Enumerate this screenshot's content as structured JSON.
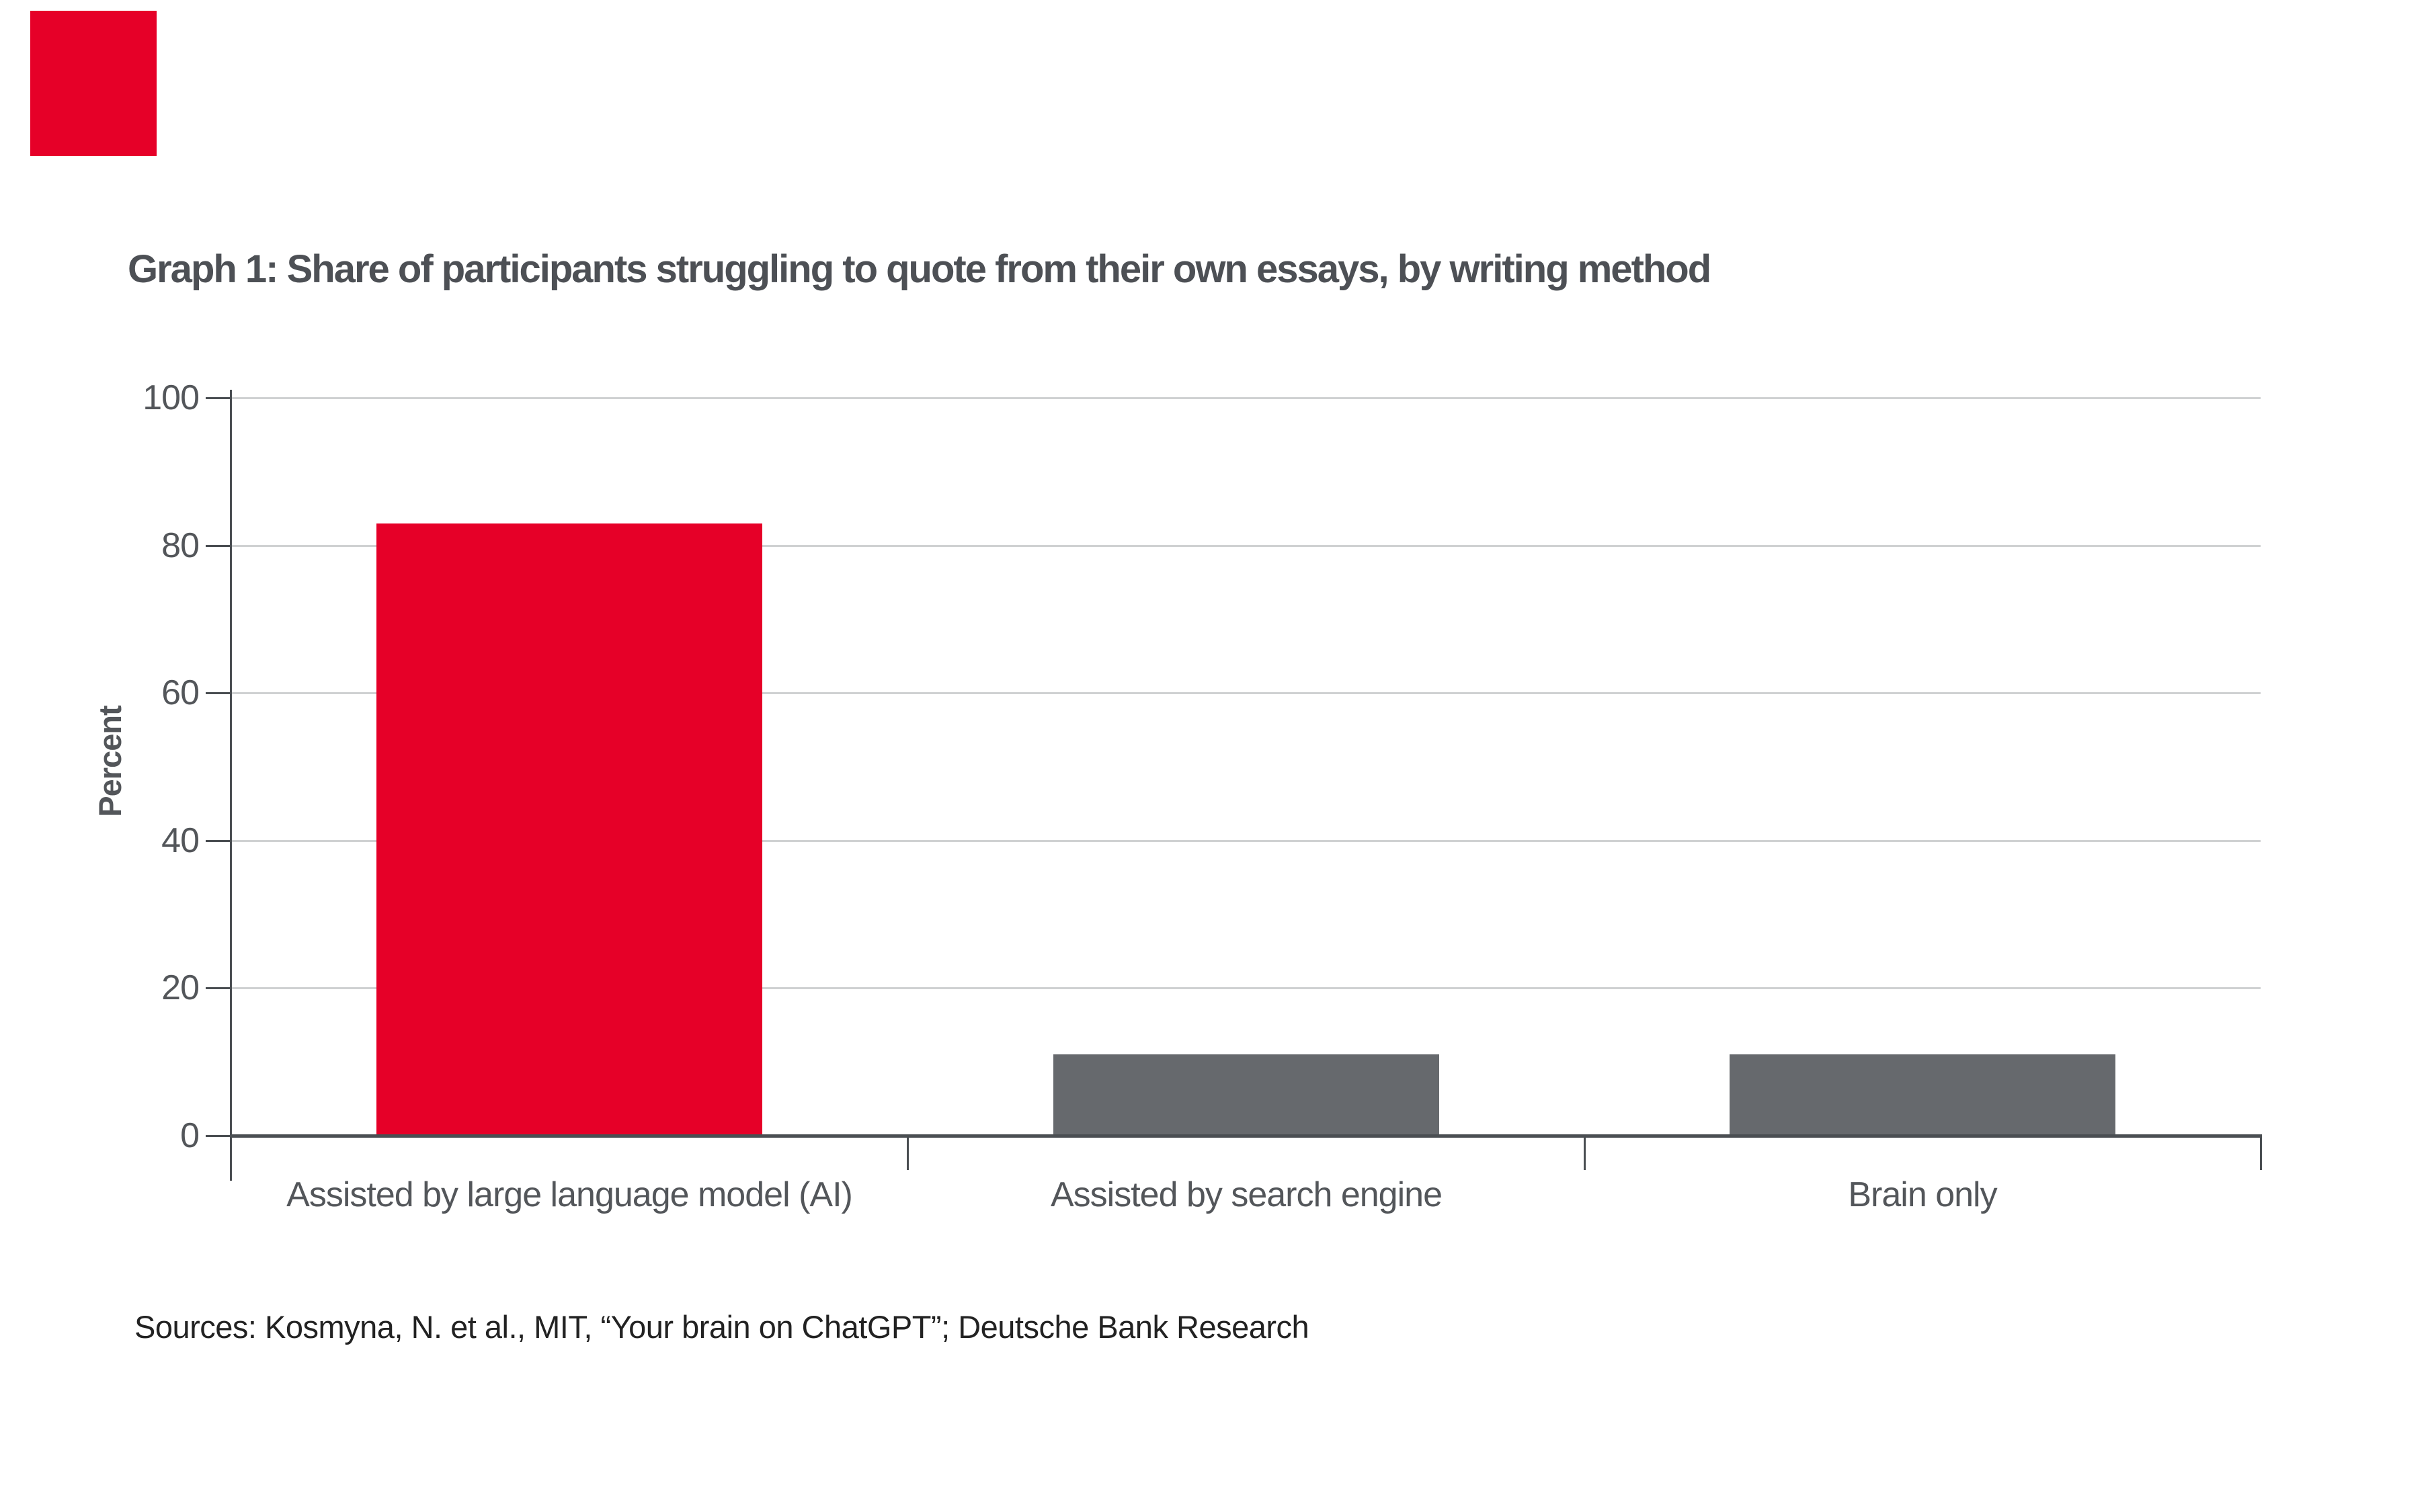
{
  "brand": {
    "logo_color": "#E60028"
  },
  "header": {
    "title": "Graph 1: Share of participants struggling to quote from their own essays, by writing method"
  },
  "chart_data": {
    "type": "bar",
    "title": "Graph 1: Share of participants struggling to quote from their own essays, by writing method",
    "categories": [
      "Assisted by large language model (AI)",
      "Assisted by search engine",
      "Brain only"
    ],
    "values": [
      83,
      11,
      11
    ],
    "bar_colors": [
      "#E60028",
      "#66696D",
      "#66696D"
    ],
    "xlabel": "",
    "ylabel": "Percent",
    "ylim": [
      0,
      100
    ],
    "yticks": [
      0,
      20,
      40,
      60,
      80,
      100
    ],
    "grid": "horizontal",
    "legend": "none",
    "source": "Sources: Kosmyna, N. et al., MIT, “Your brain on ChatGPT”; Deutsche Bank Research"
  },
  "footer": {
    "source": "Sources: Kosmyna, N. et al., MIT, “Your brain on ChatGPT”; Deutsche Bank Research"
  },
  "colors": {
    "accent_red": "#E60028",
    "bar_gray": "#66696D",
    "axis_line": "#4A4E52",
    "gridline": "#CFD1D2",
    "text_gray": "#53565A",
    "title_gray": "#4D5055",
    "source_text": "#222222",
    "background": "#FFFFFF"
  }
}
